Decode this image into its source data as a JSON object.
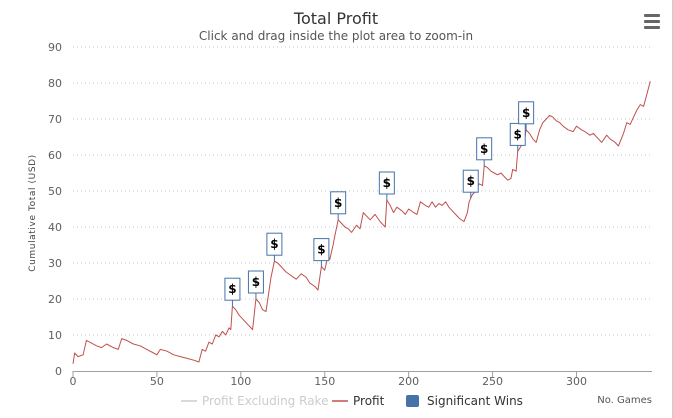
{
  "chart_data": {
    "type": "line",
    "title": "Total Profit",
    "subtitle": "Click and drag inside the plot area to zoom-in",
    "xlabel": "No. Games",
    "ylabel": "Cumulative Total (USD)",
    "xlim": [
      0,
      345
    ],
    "ylim": [
      0,
      90
    ],
    "x_ticks": [
      0,
      50,
      100,
      150,
      200,
      250,
      300
    ],
    "y_ticks": [
      0,
      10,
      20,
      30,
      40,
      50,
      60,
      70,
      80,
      90
    ],
    "grid": "horizontal dotted",
    "legend": "bottom-center",
    "series": [
      {
        "name": "Profit Excluding Rake",
        "color": "#cccccc",
        "hidden": true,
        "values": []
      },
      {
        "name": "Profit",
        "color": "#c0504d",
        "points": [
          [
            0,
            2
          ],
          [
            1,
            5
          ],
          [
            3,
            4
          ],
          [
            6,
            4.5
          ],
          [
            8,
            8.5
          ],
          [
            10,
            8
          ],
          [
            14,
            7
          ],
          [
            17,
            6.5
          ],
          [
            20,
            7.5
          ],
          [
            24,
            6.5
          ],
          [
            27,
            6
          ],
          [
            29,
            9
          ],
          [
            32,
            8.5
          ],
          [
            36,
            7.5
          ],
          [
            40,
            7
          ],
          [
            44,
            6
          ],
          [
            48,
            5
          ],
          [
            50,
            4.5
          ],
          [
            52,
            6
          ],
          [
            56,
            5.5
          ],
          [
            60,
            4.5
          ],
          [
            64,
            4
          ],
          [
            68,
            3.5
          ],
          [
            72,
            3
          ],
          [
            75,
            2.5
          ],
          [
            77,
            6
          ],
          [
            79,
            5.5
          ],
          [
            81,
            8
          ],
          [
            83,
            7.5
          ],
          [
            85,
            10
          ],
          [
            87,
            9.5
          ],
          [
            89,
            11
          ],
          [
            91,
            10
          ],
          [
            93,
            12
          ],
          [
            94,
            11.5
          ],
          [
            95,
            18
          ],
          [
            97,
            17
          ],
          [
            99,
            15.5
          ],
          [
            101,
            14.5
          ],
          [
            104,
            13
          ],
          [
            107,
            11.5
          ],
          [
            109,
            20
          ],
          [
            111,
            19
          ],
          [
            113,
            17
          ],
          [
            115,
            16.5
          ],
          [
            117,
            23
          ],
          [
            118,
            26
          ],
          [
            120,
            30.5
          ],
          [
            122,
            30
          ],
          [
            124,
            29
          ],
          [
            127,
            27.5
          ],
          [
            130,
            26.5
          ],
          [
            133,
            25.5
          ],
          [
            136,
            27
          ],
          [
            139,
            26
          ],
          [
            141,
            24.5
          ],
          [
            144,
            23.5
          ],
          [
            146,
            22.5
          ],
          [
            148,
            29
          ],
          [
            150,
            28
          ],
          [
            152,
            32
          ],
          [
            153,
            31
          ],
          [
            155,
            35
          ],
          [
            156,
            37.5
          ],
          [
            158,
            42
          ],
          [
            160,
            41
          ],
          [
            162,
            40
          ],
          [
            164,
            39.5
          ],
          [
            166,
            38.5
          ],
          [
            169,
            40.5
          ],
          [
            171,
            39.5
          ],
          [
            173,
            44
          ],
          [
            175,
            43
          ],
          [
            177,
            42
          ],
          [
            180,
            43.5
          ],
          [
            183,
            41.5
          ],
          [
            186,
            40
          ],
          [
            187,
            47.5
          ],
          [
            189,
            46
          ],
          [
            191,
            44
          ],
          [
            193,
            45.5
          ],
          [
            196,
            44.5
          ],
          [
            198,
            43.5
          ],
          [
            200,
            45
          ],
          [
            203,
            44
          ],
          [
            205,
            43.5
          ],
          [
            207,
            47
          ],
          [
            210,
            46
          ],
          [
            212,
            45.5
          ],
          [
            214,
            47
          ],
          [
            216,
            45.5
          ],
          [
            218,
            46.5
          ],
          [
            220,
            46
          ],
          [
            222,
            47
          ],
          [
            224,
            45.5
          ],
          [
            226,
            44.5
          ],
          [
            228,
            43.5
          ],
          [
            230,
            42.5
          ],
          [
            233,
            41.5
          ],
          [
            235,
            44
          ],
          [
            236,
            47
          ],
          [
            238,
            49
          ],
          [
            240,
            50
          ],
          [
            242,
            52
          ],
          [
            244,
            51.5
          ],
          [
            245,
            57
          ],
          [
            247,
            56.5
          ],
          [
            249,
            55.5
          ],
          [
            251,
            55
          ],
          [
            253,
            54.5
          ],
          [
            255,
            55
          ],
          [
            257,
            54
          ],
          [
            259,
            53
          ],
          [
            261,
            53.5
          ],
          [
            262,
            56
          ],
          [
            264,
            55.5
          ],
          [
            265,
            61
          ],
          [
            267,
            62.5
          ],
          [
            269,
            64
          ],
          [
            270,
            67
          ],
          [
            272,
            66
          ],
          [
            274,
            64.5
          ],
          [
            276,
            63.5
          ],
          [
            278,
            67
          ],
          [
            280,
            69
          ],
          [
            282,
            70
          ],
          [
            284,
            71
          ],
          [
            286,
            70.5
          ],
          [
            288,
            69.5
          ],
          [
            290,
            69
          ],
          [
            292,
            68
          ],
          [
            295,
            67
          ],
          [
            298,
            66.5
          ],
          [
            300,
            68
          ],
          [
            303,
            67
          ],
          [
            305,
            66.5
          ],
          [
            308,
            65.5
          ],
          [
            310,
            66
          ],
          [
            313,
            64.5
          ],
          [
            315,
            63.5
          ],
          [
            318,
            65.5
          ],
          [
            320,
            64.5
          ],
          [
            323,
            63.5
          ],
          [
            325,
            62.5
          ],
          [
            328,
            66
          ],
          [
            330,
            69
          ],
          [
            332,
            68.5
          ],
          [
            334,
            70.5
          ],
          [
            336,
            72.5
          ],
          [
            338,
            74
          ],
          [
            340,
            73.5
          ],
          [
            342,
            77
          ],
          [
            344,
            80.5
          ]
        ]
      },
      {
        "name": "Significant Wins",
        "color": "#4572a7",
        "type": "flags",
        "flag_label": "$",
        "points": [
          {
            "x": 95,
            "y": 18
          },
          {
            "x": 109,
            "y": 20
          },
          {
            "x": 120,
            "y": 30.5
          },
          {
            "x": 148,
            "y": 29
          },
          {
            "x": 158,
            "y": 42
          },
          {
            "x": 187,
            "y": 47.5
          },
          {
            "x": 237,
            "y": 48
          },
          {
            "x": 245,
            "y": 57
          },
          {
            "x": 265,
            "y": 61
          },
          {
            "x": 270,
            "y": 67
          }
        ]
      }
    ]
  },
  "ui": {
    "menu_icon": "hamburger-icon"
  }
}
